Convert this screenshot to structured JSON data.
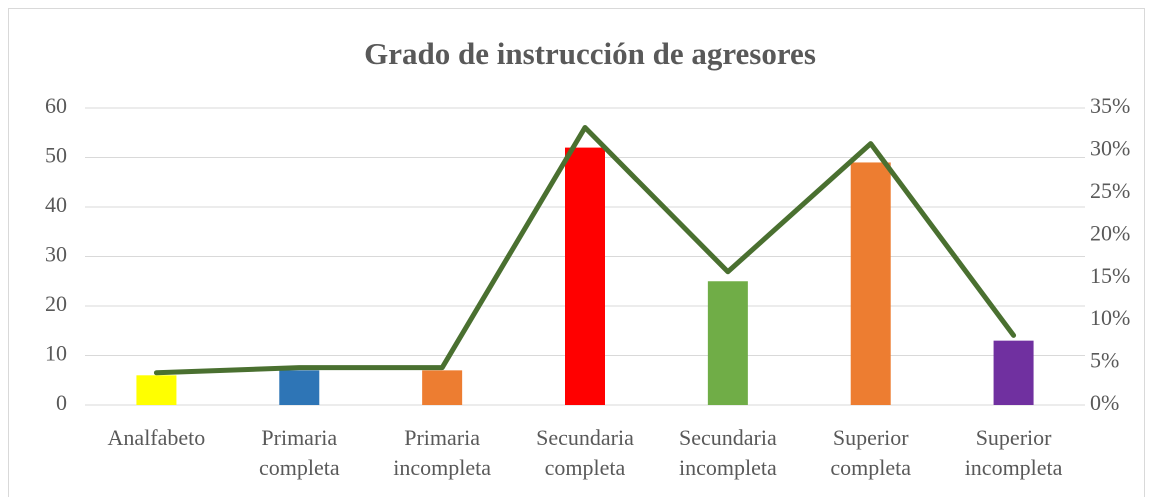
{
  "chart_data": {
    "type": "bar_line",
    "title": "Grado de instrucción de agresores",
    "categories": [
      "Analfabeto",
      "Primaria\ncompleta",
      "Primaria\nincompleta",
      "Secundaria\ncompleta",
      "Secundaria\nincompleta",
      "Superior\ncompleta",
      "Superior\nincompleta"
    ],
    "series": [
      {
        "type": "bar",
        "values": [
          6,
          7,
          7,
          52,
          25,
          49,
          13
        ],
        "colors": [
          "#ffff00",
          "#2e75b6",
          "#ed7d31",
          "#ff0000",
          "#70ad47",
          "#ed7d31",
          "#7030a0"
        ]
      },
      {
        "type": "line",
        "axis": "y2",
        "color": "#4a7030",
        "values": [
          3.8,
          4.4,
          4.4,
          32.7,
          15.7,
          30.8,
          8.2
        ]
      }
    ],
    "ylim": [
      0,
      60
    ],
    "yticks": [
      0,
      10,
      20,
      30,
      40,
      50,
      60
    ],
    "y2lim": [
      0,
      35
    ],
    "y2ticks": [
      {
        "value": 0,
        "label": "0%"
      },
      {
        "value": 5,
        "label": "5%"
      },
      {
        "value": 10,
        "label": "10%"
      },
      {
        "value": 15,
        "label": "15%"
      },
      {
        "value": 20,
        "label": "20%"
      },
      {
        "value": 25,
        "label": "25%"
      },
      {
        "value": 30,
        "label": "30%"
      },
      {
        "value": 35,
        "label": "35%"
      }
    ],
    "grid": true
  }
}
